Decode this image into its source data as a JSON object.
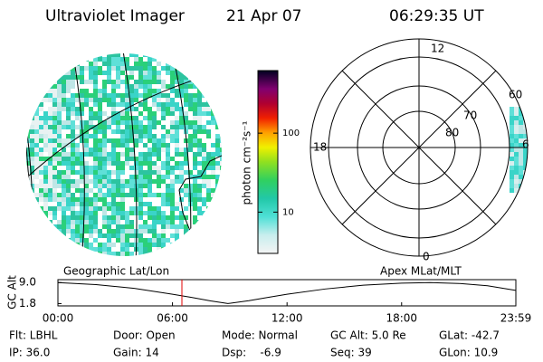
{
  "header": {
    "instrument": "Ultraviolet Imager",
    "date": "21 Apr 07",
    "time": "06:29:35 UT"
  },
  "image_panel": {
    "label": "Geographic Lat/Lon"
  },
  "colorbar": {
    "label": "photon cm⁻²s⁻¹",
    "scale": "log",
    "lim": [
      3,
      620
    ],
    "ticks": [
      10,
      100
    ]
  },
  "polar_panel": {
    "label": "Apex MLat/MLT",
    "mlt_labels": [
      "12",
      "18",
      "6",
      "0"
    ],
    "lat_labels": [
      "60",
      "70",
      "80"
    ]
  },
  "chart_data": {
    "type": "line",
    "ylabel": "GC Alt",
    "color": "#000000",
    "x": [
      0,
      2,
      4,
      6,
      7,
      8,
      8.9,
      10,
      11,
      12,
      14,
      16,
      18,
      19.5,
      21,
      22.5,
      23.983
    ],
    "values": [
      9.0,
      8.3,
      7.0,
      5.0,
      3.9,
      2.7,
      1.8,
      2.8,
      3.9,
      5.0,
      6.8,
      8.1,
      8.8,
      9.0,
      8.7,
      7.9,
      6.3
    ],
    "xlim": [
      0,
      23.983
    ],
    "ylim": [
      1.0,
      10.0
    ],
    "xticks": [
      {
        "value": 0,
        "label": "00:00"
      },
      {
        "value": 6,
        "label": "06:00"
      },
      {
        "value": 12,
        "label": "12:00"
      },
      {
        "value": 18,
        "label": "18:00"
      },
      {
        "value": 23.983,
        "label": "23:59"
      }
    ],
    "yticks": [
      1.8,
      {
        "value": 9,
        "label": "9.0"
      }
    ],
    "marker_time": 6.493,
    "marker_color": "#e00000"
  },
  "info": [
    [
      "Flt: LBHL",
      "Door: Open",
      "Mode: Normal",
      "GC Alt: 5.0 Re",
      "GLat: -42.7"
    ],
    [
      "IP: 36.0",
      "Gain: 14",
      "Dsp:    -6.9",
      "Seq: 39",
      "GLon: 10.9"
    ]
  ]
}
